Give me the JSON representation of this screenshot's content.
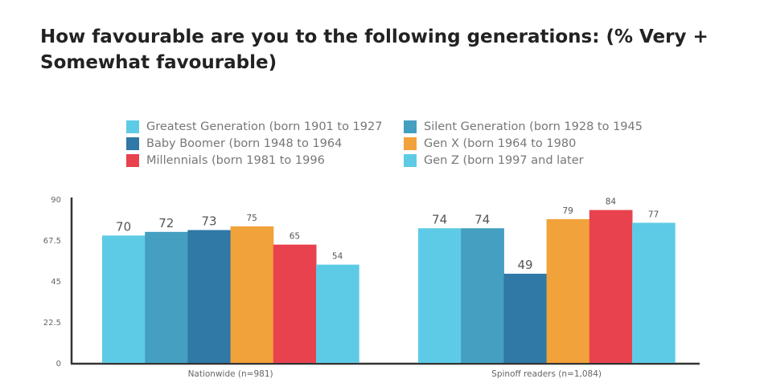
{
  "chart_data": {
    "type": "bar",
    "title": "How favourable are you to the following generations: (% Very + Somewhat favourable)",
    "categories": [
      "Nationwide (n=981)",
      "Spinoff readers (n=1,084)"
    ],
    "series": [
      {
        "name": "Greatest Generation (born 1901 to 1927",
        "color": "#5ecbe6",
        "values": [
          70,
          74
        ]
      },
      {
        "name": "Silent Generation (born 1928 to 1945",
        "color": "#449fc1",
        "values": [
          72,
          74
        ]
      },
      {
        "name": "Baby Boomer (born 1948 to 1964",
        "color": "#3078a6",
        "values": [
          73,
          49
        ]
      },
      {
        "name": "Gen X (born 1964 to 1980",
        "color": "#f2a23a",
        "values": [
          75,
          79
        ]
      },
      {
        "name": "Millennials (born 1981 to 1996",
        "color": "#e8424e",
        "values": [
          65,
          84
        ]
      },
      {
        "name": "Gen Z (born 1997 and later",
        "color": "#5ecbe6",
        "values": [
          54,
          77
        ]
      }
    ],
    "yticks": [
      "0",
      "22.5",
      "45",
      "67.5",
      "90"
    ],
    "ylim": [
      0,
      90
    ],
    "legend_position": "top",
    "legend_order": [
      0,
      1,
      2,
      3,
      4,
      5
    ]
  }
}
